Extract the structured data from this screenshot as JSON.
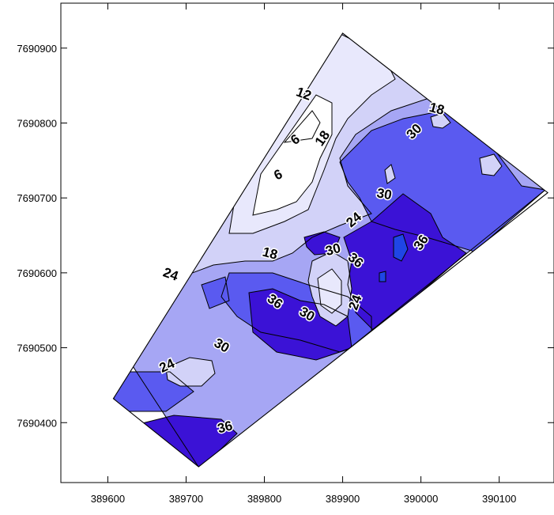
{
  "chart_data": {
    "type": "heatmap",
    "title": "",
    "xlabel": "",
    "ylabel": "",
    "xlim": [
      389540,
      390170
    ],
    "ylim": [
      7690320,
      7690960
    ],
    "x_ticks": [
      389600,
      389700,
      389800,
      389900,
      390000,
      390100
    ],
    "y_ticks": [
      7690400,
      7690500,
      7690600,
      7690700,
      7690800,
      7690900
    ],
    "x_tick_labels": [
      "389600",
      "389700",
      "389800",
      "389900",
      "390000",
      "390100"
    ],
    "y_tick_labels": [
      "7690400",
      "7690500",
      "7690600",
      "7690700",
      "7690800",
      "7690900"
    ],
    "grid": false,
    "legend": "none",
    "contour_levels": [
      6,
      12,
      18,
      24,
      30,
      36
    ],
    "level_colors": {
      "0": "#ffffff",
      "6": "#ffffff",
      "12": "#e8e8fc",
      "18": "#d2d2f8",
      "24": "#a6a6f4",
      "30": "#5a5af0",
      "36": "#3b12d6",
      "42": "#1f46e6"
    },
    "survey_boundary": [
      [
        389607,
        7690432
      ],
      [
        389900,
        7690920
      ],
      [
        390162,
        7690707
      ],
      [
        389716,
        7690341
      ]
    ],
    "contour_labels": [
      {
        "text": "12",
        "x": 389850,
        "y": 7690838,
        "rotate": 20
      },
      {
        "text": "6",
        "x": 389840,
        "y": 7690777,
        "rotate": -35
      },
      {
        "text": "6",
        "x": 389818,
        "y": 7690730,
        "rotate": -25
      },
      {
        "text": "18",
        "x": 389875,
        "y": 7690779,
        "rotate": -55
      },
      {
        "text": "18",
        "x": 390020,
        "y": 7690818,
        "rotate": 15
      },
      {
        "text": "30",
        "x": 389992,
        "y": 7690788,
        "rotate": -45
      },
      {
        "text": "30",
        "x": 389953,
        "y": 7690704,
        "rotate": 10
      },
      {
        "text": "24",
        "x": 389915,
        "y": 7690670,
        "rotate": -40
      },
      {
        "text": "18",
        "x": 389807,
        "y": 7690625,
        "rotate": 15
      },
      {
        "text": "30",
        "x": 389888,
        "y": 7690630,
        "rotate": -15
      },
      {
        "text": "36",
        "x": 389916,
        "y": 7690616,
        "rotate": 40
      },
      {
        "text": "36",
        "x": 390001,
        "y": 7690640,
        "rotate": -55
      },
      {
        "text": "24",
        "x": 389680,
        "y": 7690597,
        "rotate": 20
      },
      {
        "text": "36",
        "x": 389813,
        "y": 7690561,
        "rotate": 35
      },
      {
        "text": "30",
        "x": 389854,
        "y": 7690544,
        "rotate": 30
      },
      {
        "text": "24",
        "x": 389917,
        "y": 7690560,
        "rotate": -70
      },
      {
        "text": "30",
        "x": 389745,
        "y": 7690502,
        "rotate": 30
      },
      {
        "text": "24",
        "x": 389676,
        "y": 7690475,
        "rotate": -25
      },
      {
        "text": "36",
        "x": 389750,
        "y": 7690393,
        "rotate": -15
      }
    ]
  }
}
